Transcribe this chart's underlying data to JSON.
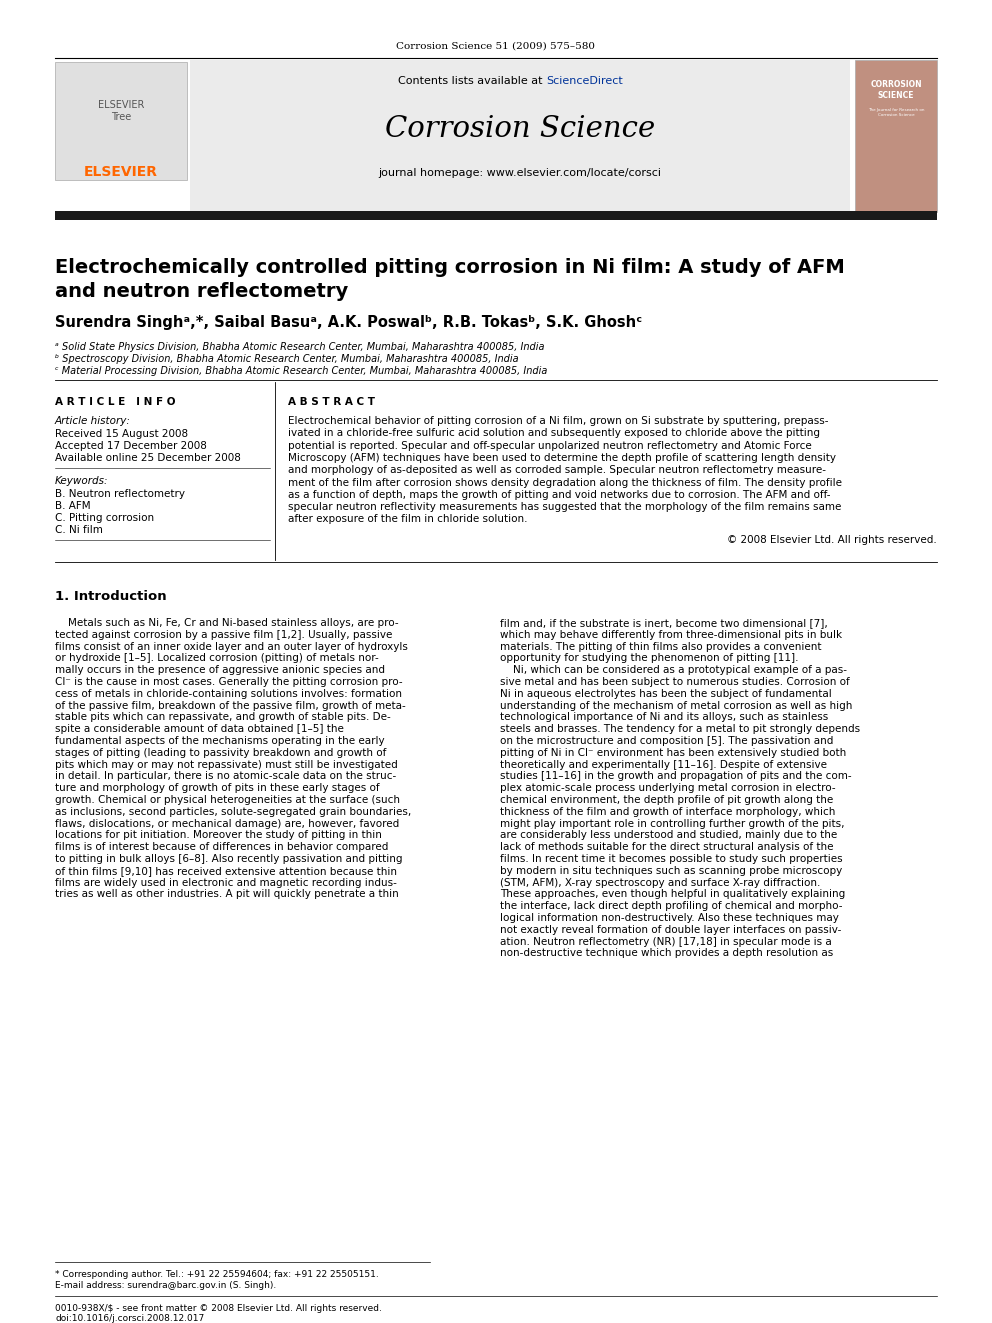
{
  "page_bg": "#ffffff",
  "top_citation": "Corrosion Science 51 (2009) 575–580",
  "contents_text": "Contents lists available at ",
  "sciencedirect_text": "ScienceDirect",
  "journal_name": "Corrosion Science",
  "journal_homepage": "journal homepage: www.elsevier.com/locate/corsci",
  "article_title_line1": "Electrochemically controlled pitting corrosion in Ni film: A study of AFM",
  "article_title_line2": "and neutron reflectometry",
  "authors": "Surendra Singhᵃ,*, Saibal Basuᵃ, A.K. Poswalᵇ, R.B. Tokasᵇ, S.K. Ghoshᶜ",
  "affil_a": "ᵃ Solid State Physics Division, Bhabha Atomic Research Center, Mumbai, Maharashtra 400085, India",
  "affil_b": "ᵇ Spectroscopy Division, Bhabha Atomic Research Center, Mumbai, Maharashtra 400085, India",
  "affil_c": "ᶜ Material Processing Division, Bhabha Atomic Research Center, Mumbai, Maharashtra 400085, India",
  "article_info_header": "A R T I C L E   I N F O",
  "abstract_header": "A B S T R A C T",
  "article_history_label": "Article history:",
  "received": "Received 15 August 2008",
  "accepted": "Accepted 17 December 2008",
  "available": "Available online 25 December 2008",
  "keywords_label": "Keywords:",
  "keyword1": "B. Neutron reflectometry",
  "keyword2": "B. AFM",
  "keyword3": "C. Pitting corrosion",
  "keyword4": "C. Ni film",
  "copyright": "© 2008 Elsevier Ltd. All rights reserved.",
  "intro_header": "1. Introduction",
  "footnote1": "* Corresponding author. Tel.: +91 22 25594604; fax: +91 22 25505151.",
  "footnote2": "E-mail address: surendra@barc.gov.in (S. Singh).",
  "footnote3": "0010-938X/$ - see front matter © 2008 Elsevier Ltd. All rights reserved.",
  "footnote4": "doi:10.1016/j.corsci.2008.12.017",
  "elsevier_orange": "#FF6600",
  "sciencedirect_blue": "#003399",
  "header_bar_color": "#1a1a1a",
  "abstract_lines": [
    "Electrochemical behavior of pitting corrosion of a Ni film, grown on Si substrate by sputtering, prepass-",
    "ivated in a chloride-free sulfuric acid solution and subsequently exposed to chloride above the pitting",
    "potential is reported. Specular and off-specular unpolarized neutron reflectometry and Atomic Force",
    "Microscopy (AFM) techniques have been used to determine the depth profile of scattering length density",
    "and morphology of as-deposited as well as corroded sample. Specular neutron reflectometry measure-",
    "ment of the film after corrosion shows density degradation along the thickness of film. The density profile",
    "as a function of depth, maps the growth of pitting and void networks due to corrosion. The AFM and off-",
    "specular neutron reflectivity measurements has suggested that the morphology of the film remains same",
    "after exposure of the film in chloride solution."
  ],
  "intro_col1_lines": [
    "    Metals such as Ni, Fe, Cr and Ni-based stainless alloys, are pro-",
    "tected against corrosion by a passive film [1,2]. Usually, passive",
    "films consist of an inner oxide layer and an outer layer of hydroxyls",
    "or hydroxide [1–5]. Localized corrosion (pitting) of metals nor-",
    "mally occurs in the presence of aggressive anionic species and",
    "Cl⁻ is the cause in most cases. Generally the pitting corrosion pro-",
    "cess of metals in chloride-containing solutions involves: formation",
    "of the passive film, breakdown of the passive film, growth of meta-",
    "stable pits which can repassivate, and growth of stable pits. De-",
    "spite a considerable amount of data obtained [1–5] the",
    "fundamental aspects of the mechanisms operating in the early",
    "stages of pitting (leading to passivity breakdown and growth of",
    "pits which may or may not repassivate) must still be investigated",
    "in detail. In particular, there is no atomic-scale data on the struc-",
    "ture and morphology of growth of pits in these early stages of",
    "growth. Chemical or physical heterogeneities at the surface (such",
    "as inclusions, second particles, solute-segregated grain boundaries,",
    "flaws, dislocations, or mechanical damage) are, however, favored",
    "locations for pit initiation. Moreover the study of pitting in thin",
    "films is of interest because of differences in behavior compared",
    "to pitting in bulk alloys [6–8]. Also recently passivation and pitting",
    "of thin films [9,10] has received extensive attention because thin",
    "films are widely used in electronic and magnetic recording indus-",
    "tries as well as other industries. A pit will quickly penetrate a thin"
  ],
  "intro_col2_lines": [
    "film and, if the substrate is inert, become two dimensional [7],",
    "which may behave differently from three-dimensional pits in bulk",
    "materials. The pitting of thin films also provides a convenient",
    "opportunity for studying the phenomenon of pitting [11].",
    "    Ni, which can be considered as a prototypical example of a pas-",
    "sive metal and has been subject to numerous studies. Corrosion of",
    "Ni in aqueous electrolytes has been the subject of fundamental",
    "understanding of the mechanism of metal corrosion as well as high",
    "technological importance of Ni and its alloys, such as stainless",
    "steels and brasses. The tendency for a metal to pit strongly depends",
    "on the microstructure and composition [5]. The passivation and",
    "pitting of Ni in Cl⁻ environment has been extensively studied both",
    "theoretically and experimentally [11–16]. Despite of extensive",
    "studies [11–16] in the growth and propagation of pits and the com-",
    "plex atomic-scale process underlying metal corrosion in electro-",
    "chemical environment, the depth profile of pit growth along the",
    "thickness of the film and growth of interface morphology, which",
    "might play important role in controlling further growth of the pits,",
    "are considerably less understood and studied, mainly due to the",
    "lack of methods suitable for the direct structural analysis of the",
    "films. In recent time it becomes possible to study such properties",
    "by modern in situ techniques such as scanning probe microscopy",
    "(STM, AFM), X-ray spectroscopy and surface X-ray diffraction.",
    "These approaches, even though helpful in qualitatively explaining",
    "the interface, lack direct depth profiling of chemical and morpho-",
    "logical information non-destructively. Also these techniques may",
    "not exactly reveal formation of double layer interfaces on passiv-",
    "ation. Neutron reflectometry (NR) [17,18] in specular mode is a",
    "non-destructive technique which provides a depth resolution as"
  ]
}
